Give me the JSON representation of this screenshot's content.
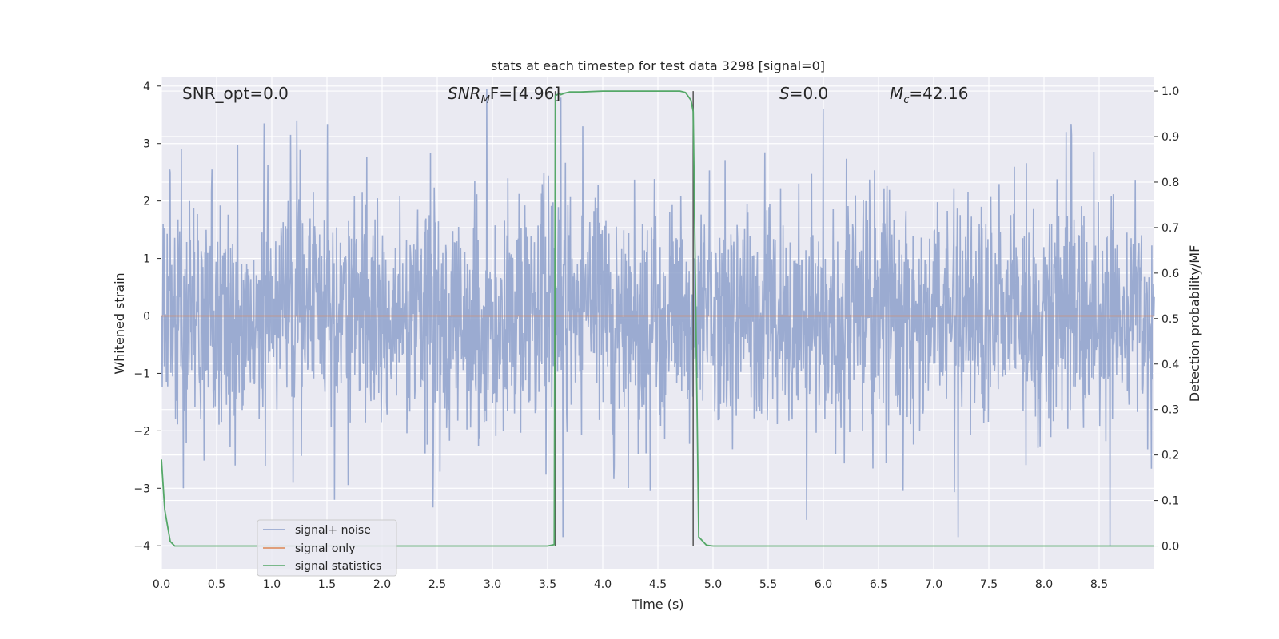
{
  "chart_data": {
    "type": "line",
    "title": "stats at each timestep for test data 3298 [signal=0]",
    "xlabel": "Time (s)",
    "ylabel_left": "Whitened strain",
    "ylabel_right": "Detection probability/MF",
    "xlim": [
      0,
      9.0
    ],
    "ylim_left": [
      -4.4,
      4.15
    ],
    "ylim_right": [
      -0.05,
      1.03
    ],
    "x_ticks": [
      "0.0",
      "0.5",
      "1.0",
      "1.5",
      "2.0",
      "2.5",
      "3.0",
      "3.5",
      "4.0",
      "4.5",
      "5.0",
      "5.5",
      "6.0",
      "6.5",
      "7.0",
      "7.5",
      "8.0",
      "8.5"
    ],
    "y_ticks_left": [
      "−4",
      "−3",
      "−2",
      "−1",
      "0",
      "1",
      "2",
      "3",
      "4"
    ],
    "y_ticks_right": [
      "0.0",
      "0.1",
      "0.2",
      "0.3",
      "0.4",
      "0.5",
      "0.6",
      "0.7",
      "0.8",
      "0.9",
      "1.0"
    ],
    "grid": true,
    "legend_position": "lower-left",
    "annotations": {
      "snr_opt": "SNR_opt=0.0",
      "snr_mf_main": "SNR",
      "snr_mf_sub": "M",
      "snr_mf_rest": "F=[4.96]",
      "s_main": "S",
      "s_rest": "=0.0",
      "mc_main": "M",
      "mc_sub": "c",
      "mc_rest": "=42.16"
    },
    "vlines_x": [
      3.57,
      4.82
    ],
    "series": [
      {
        "name": "signal+ noise",
        "axis": "left",
        "color": "#8da0cb",
        "description": "whitened noise, approx Gaussian sigma 1, spanning about -4 to 4",
        "envelope_peaks": [
          {
            "x": 0.08,
            "y": 2.5
          },
          {
            "x": 0.18,
            "y": 2.9
          },
          {
            "x": 0.93,
            "y": 3.35
          },
          {
            "x": 1.17,
            "y": 3.15
          },
          {
            "x": 2.95,
            "y": 3.95
          },
          {
            "x": 3.62,
            "y": 3.8
          },
          {
            "x": 3.82,
            "y": 3.3
          },
          {
            "x": 6.0,
            "y": 3.6
          },
          {
            "x": 7.22,
            "y": 3.2
          },
          {
            "x": 8.2,
            "y": 3.2
          }
        ],
        "envelope_troughs": [
          {
            "x": 0.2,
            "y": -3.0
          },
          {
            "x": 1.57,
            "y": -3.2
          },
          {
            "x": 3.64,
            "y": -3.85
          },
          {
            "x": 5.85,
            "y": -3.55
          },
          {
            "x": 7.22,
            "y": -3.85
          },
          {
            "x": 8.6,
            "y": -4.0
          }
        ]
      },
      {
        "name": "signal only",
        "axis": "left",
        "color": "#dd8452",
        "x": [
          0,
          9.0
        ],
        "y": [
          0,
          0
        ]
      },
      {
        "name": "signal statistics",
        "axis": "right",
        "color": "#55a868",
        "x": [
          0.0,
          0.03,
          0.08,
          0.12,
          0.3,
          1.0,
          2.0,
          3.0,
          3.5,
          3.56,
          3.57,
          3.61,
          3.62,
          3.65,
          3.7,
          3.8,
          4.0,
          4.5,
          4.7,
          4.75,
          4.8,
          4.82,
          4.87,
          4.94,
          5.0,
          6.0,
          7.0,
          8.0,
          9.0
        ],
        "y": [
          0.19,
          0.08,
          0.01,
          0.0,
          0.0,
          0.0,
          0.0,
          0.0,
          0.0,
          0.003,
          0.99,
          0.995,
          0.992,
          0.995,
          0.998,
          0.998,
          1.0,
          1.0,
          1.0,
          0.997,
          0.98,
          0.955,
          0.02,
          0.002,
          0.0,
          0.0,
          0.0,
          0.0,
          0.0
        ]
      }
    ]
  }
}
